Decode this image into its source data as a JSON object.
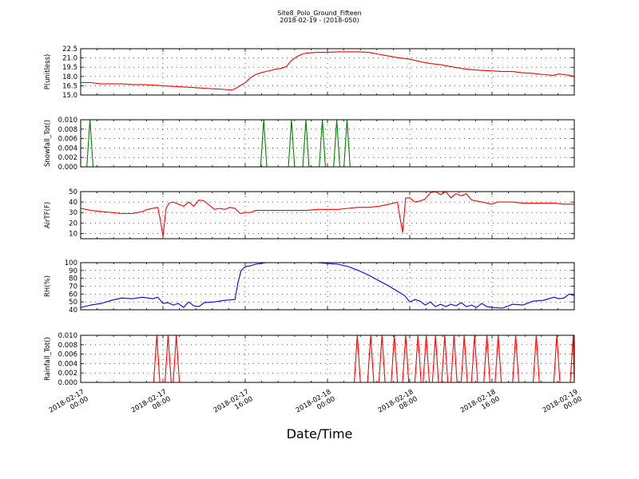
{
  "figure": {
    "title_line1": "Site8_Polo_Ground_Fifteen",
    "title_line2": "2018-02-19 - (2018-050)",
    "xlabel": "Date/Time"
  },
  "chart_data": [
    {
      "type": "line",
      "ylabel": "P(unitless)",
      "color": "#ff0000",
      "x_ticks": [
        "2018-02-17 00:00",
        "2018-02-17 08:00",
        "2018-02-17 16:00",
        "2018-02-18 00:00",
        "2018-02-18 08:00",
        "2018-02-18 16:00",
        "2018-02-19 00:00"
      ],
      "xlim": [
        0,
        48
      ],
      "ylim": [
        15.0,
        22.5
      ],
      "y_ticks": [
        "15.0",
        "16.5",
        "18.0",
        "19.5",
        "21.0",
        "22.5"
      ],
      "y_tick_values": [
        15.0,
        16.5,
        18.0,
        19.5,
        21.0,
        22.5
      ],
      "grid": true,
      "series": [
        {
          "x": [
            0,
            1,
            2,
            3,
            4,
            5,
            6,
            7,
            8,
            9,
            10,
            11,
            12,
            13,
            14,
            14.7,
            15,
            15.5,
            16,
            16.5,
            17,
            17.5,
            18,
            18.5,
            19,
            19.5,
            20,
            20.5,
            21,
            21.5,
            22,
            23,
            24,
            25,
            26,
            27,
            28,
            29,
            30,
            31,
            32,
            33,
            34,
            35,
            36,
            37,
            38,
            39,
            40,
            41,
            42,
            43,
            44,
            45,
            46,
            46.5,
            47,
            47.5,
            48
          ],
          "y": [
            17.0,
            17.0,
            16.8,
            16.8,
            16.8,
            16.7,
            16.7,
            16.6,
            16.5,
            16.4,
            16.3,
            16.2,
            16.1,
            16.0,
            15.9,
            15.8,
            16.0,
            16.5,
            17.0,
            17.8,
            18.3,
            18.6,
            18.8,
            19.0,
            19.2,
            19.3,
            19.6,
            20.6,
            21.2,
            21.6,
            21.8,
            21.9,
            21.9,
            22.0,
            22.0,
            22.0,
            21.9,
            21.6,
            21.3,
            21.0,
            20.8,
            20.4,
            20.1,
            19.9,
            19.6,
            19.3,
            19.1,
            19.0,
            18.9,
            18.8,
            18.8,
            18.6,
            18.5,
            18.3,
            18.2,
            18.4,
            18.3,
            18.2,
            18.0
          ]
        }
      ]
    },
    {
      "type": "line",
      "ylabel": "Snowfall_Tot()",
      "color": "#008000",
      "x_ticks": [
        "2018-02-17 00:00",
        "2018-02-17 08:00",
        "2018-02-17 16:00",
        "2018-02-18 00:00",
        "2018-02-18 08:00",
        "2018-02-18 16:00",
        "2018-02-19 00:00"
      ],
      "xlim": [
        0,
        48
      ],
      "ylim": [
        0.0,
        0.01
      ],
      "y_ticks": [
        "0.000",
        "0.002",
        "0.004",
        "0.006",
        "0.008",
        "0.010"
      ],
      "y_tick_values": [
        0.0,
        0.002,
        0.004,
        0.006,
        0.008,
        0.01
      ],
      "grid": true,
      "series": [
        {
          "x": [
            0,
            0.6,
            0.9,
            1.2,
            17.5,
            17.8,
            18.1,
            20.2,
            20.5,
            20.8,
            21.6,
            21.9,
            22.2,
            23.2,
            23.5,
            23.8,
            24.6,
            24.9,
            25.2,
            25.6,
            25.9,
            26.2,
            48
          ],
          "y": [
            0,
            0,
            0.01,
            0,
            0,
            0.01,
            0,
            0,
            0.01,
            0,
            0,
            0.01,
            0,
            0,
            0.01,
            0,
            0,
            0.01,
            0,
            0,
            0.01,
            0,
            0
          ]
        }
      ]
    },
    {
      "type": "line",
      "ylabel": "AirTF(F)",
      "color": "#ff0000",
      "x_ticks": [
        "2018-02-17 00:00",
        "2018-02-17 08:00",
        "2018-02-17 16:00",
        "2018-02-18 00:00",
        "2018-02-18 08:00",
        "2018-02-18 16:00",
        "2018-02-19 00:00"
      ],
      "xlim": [
        0,
        48
      ],
      "ylim": [
        5,
        50
      ],
      "y_ticks": [
        "10",
        "20",
        "30",
        "40",
        "50"
      ],
      "y_tick_values": [
        10,
        20,
        30,
        40,
        50
      ],
      "grid": true,
      "series": [
        {
          "x": [
            0,
            1,
            2,
            3,
            4,
            5,
            6,
            6.5,
            7,
            7.5,
            7.8,
            8,
            8.3,
            8.6,
            9,
            9.5,
            10,
            10.5,
            11,
            11.5,
            12,
            12.5,
            13,
            13.5,
            14,
            14.5,
            15,
            15.5,
            16,
            16.5,
            17,
            18,
            19,
            20,
            21,
            22,
            23,
            24,
            25,
            26,
            27,
            28,
            29,
            30,
            30.8,
            31,
            31.3,
            31.6,
            32,
            32.5,
            33,
            33.5,
            34,
            34.5,
            35,
            35.5,
            36,
            36.5,
            37,
            37.5,
            38,
            39,
            40,
            40.5,
            41,
            42,
            43,
            44,
            45,
            46,
            47,
            48
          ],
          "y": [
            34,
            32,
            31,
            30,
            29,
            29,
            31,
            33,
            34,
            35,
            20,
            7,
            34,
            39,
            40,
            38,
            36,
            40,
            36,
            42,
            41,
            37,
            33,
            34,
            33,
            35,
            34,
            29,
            30,
            30,
            32,
            32,
            32,
            32,
            32,
            32,
            33,
            33,
            33,
            34,
            35,
            35,
            36,
            38,
            40,
            28,
            11,
            44,
            44,
            40,
            41,
            43,
            49,
            50,
            47,
            50,
            44,
            48,
            46,
            48,
            42,
            40,
            38,
            40,
            40,
            40,
            39,
            39,
            39,
            39,
            38,
            38
          ]
        }
      ]
    },
    {
      "type": "line",
      "ylabel": "RH(%)",
      "color": "#0000ff",
      "x_ticks": [
        "2018-02-17 00:00",
        "2018-02-17 08:00",
        "2018-02-17 16:00",
        "2018-02-18 00:00",
        "2018-02-18 08:00",
        "2018-02-18 16:00",
        "2018-02-19 00:00"
      ],
      "xlim": [
        0,
        48
      ],
      "ylim": [
        40,
        100
      ],
      "y_ticks": [
        "40",
        "50",
        "60",
        "70",
        "80",
        "90",
        "100"
      ],
      "y_tick_values": [
        40,
        50,
        60,
        70,
        80,
        90,
        100
      ],
      "grid": true,
      "series": [
        {
          "x": [
            0,
            1,
            2,
            3,
            4,
            5,
            6,
            7,
            7.5,
            8,
            8.5,
            9,
            9.5,
            10,
            10.5,
            11,
            11.5,
            12,
            13,
            14,
            15,
            15.3,
            15.6,
            16,
            16.5,
            17,
            17.5,
            18,
            19,
            20,
            21,
            22,
            23,
            24,
            25,
            26,
            27,
            28,
            29,
            30,
            31,
            31.5,
            32,
            32.5,
            33,
            33.5,
            34,
            34.5,
            35,
            35.5,
            36,
            36.5,
            37,
            37.5,
            38,
            38.5,
            39,
            39.5,
            40,
            41,
            42,
            43,
            44,
            45,
            46,
            46.5,
            47,
            47.5,
            48
          ],
          "y": [
            43,
            46,
            48,
            52,
            55,
            54,
            56,
            54,
            56,
            48,
            49,
            46,
            48,
            43,
            50,
            45,
            44,
            49,
            50,
            52,
            53,
            75,
            90,
            95,
            96,
            98,
            99,
            100,
            100,
            100,
            100,
            100,
            100,
            99,
            98,
            95,
            90,
            84,
            77,
            70,
            62,
            58,
            50,
            53,
            51,
            46,
            50,
            44,
            47,
            44,
            47,
            45,
            49,
            44,
            46,
            43,
            48,
            44,
            43,
            42,
            47,
            46,
            51,
            52,
            56,
            54,
            55,
            60,
            58
          ]
        }
      ]
    },
    {
      "type": "line",
      "ylabel": "Rainfall_Tot()",
      "color": "#ff0000",
      "x_ticks": [
        "2018-02-17 00:00",
        "2018-02-17 08:00",
        "2018-02-17 16:00",
        "2018-02-18 00:00",
        "2018-02-18 08:00",
        "2018-02-18 16:00",
        "2018-02-19 00:00"
      ],
      "xlim": [
        0,
        48
      ],
      "ylim": [
        0.0,
        0.01
      ],
      "y_ticks": [
        "0.000",
        "0.002",
        "0.004",
        "0.006",
        "0.008",
        "0.010"
      ],
      "y_tick_values": [
        0.0,
        0.002,
        0.004,
        0.006,
        0.008,
        0.01
      ],
      "grid": true,
      "series": [
        {
          "x": [
            0,
            7.1,
            7.4,
            7.7,
            8.2,
            8.5,
            8.8,
            9.0,
            9.3,
            9.6,
            26.6,
            26.9,
            27.2,
            27.9,
            28.2,
            28.5,
            29.0,
            29.3,
            29.6,
            30.2,
            30.5,
            30.8,
            31.3,
            31.6,
            31.9,
            32.5,
            32.8,
            33.1,
            33.3,
            33.6,
            33.9,
            34.2,
            34.5,
            34.8,
            35.1,
            35.4,
            35.7,
            36.0,
            36.3,
            36.6,
            37.0,
            37.3,
            37.6,
            38.0,
            38.3,
            38.6,
            39.2,
            39.5,
            39.8,
            40.3,
            40.6,
            40.9,
            42.0,
            42.3,
            42.6,
            44.0,
            44.3,
            44.6,
            46.0,
            46.3,
            46.6,
            47.6,
            47.9,
            48
          ],
          "y": [
            0,
            0,
            0.01,
            0,
            0,
            0.01,
            0,
            0,
            0.01,
            0,
            0,
            0.01,
            0,
            0,
            0.01,
            0,
            0,
            0.01,
            0,
            0,
            0.01,
            0,
            0,
            0.01,
            0,
            0,
            0.01,
            0,
            0,
            0.01,
            0,
            0,
            0.01,
            0,
            0,
            0.01,
            0,
            0,
            0.01,
            0,
            0,
            0.01,
            0,
            0,
            0.01,
            0,
            0,
            0.01,
            0,
            0,
            0.01,
            0,
            0,
            0.01,
            0,
            0,
            0.01,
            0,
            0,
            0.01,
            0,
            0,
            0.01,
            0
          ]
        }
      ]
    }
  ]
}
